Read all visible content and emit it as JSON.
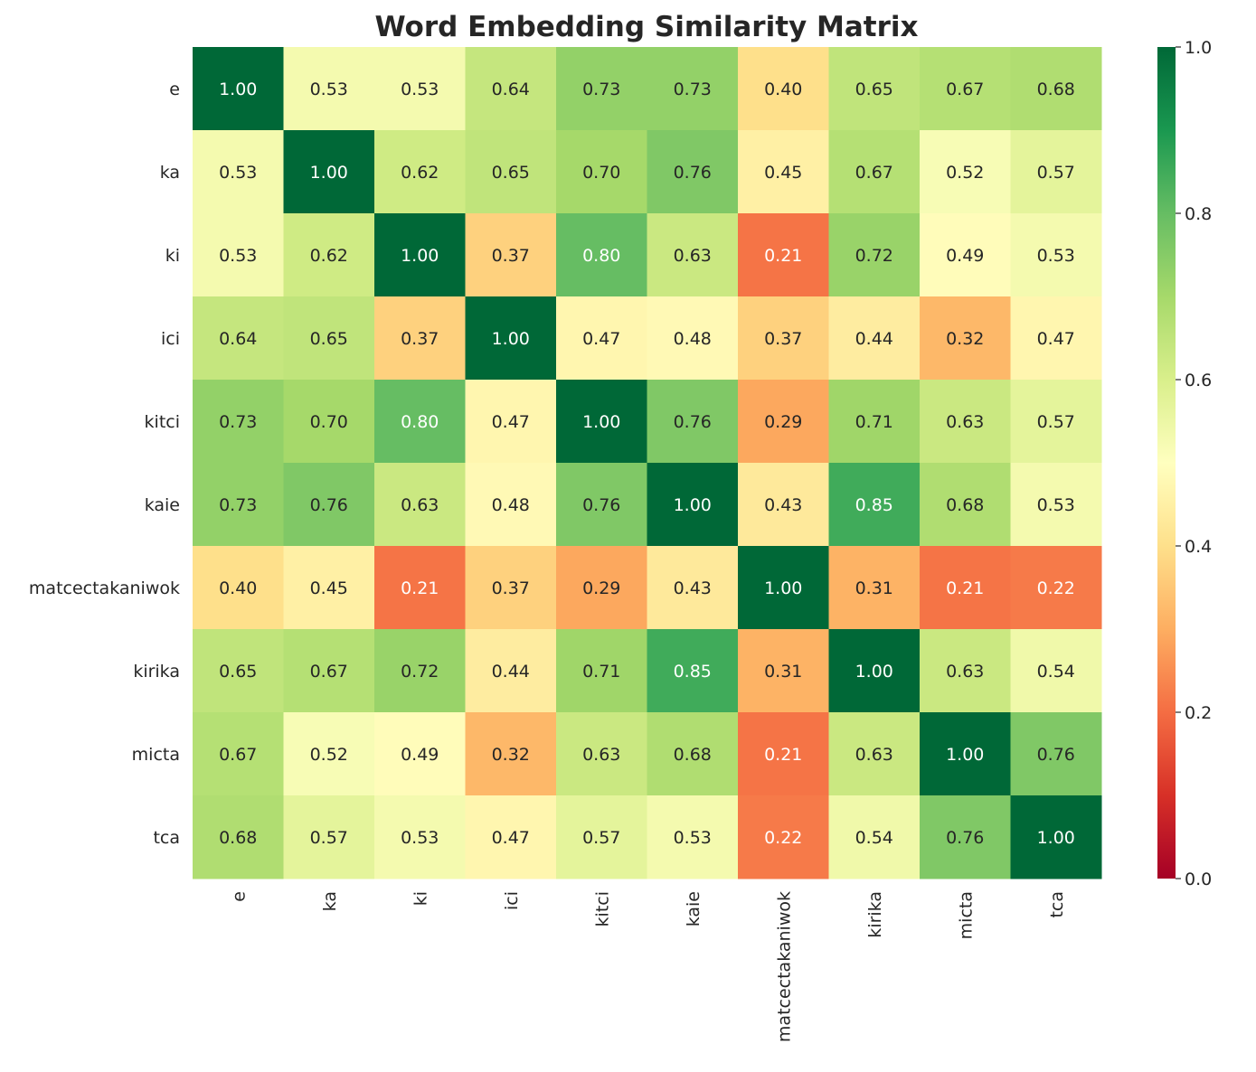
{
  "chart_data": {
    "type": "heatmap",
    "title": "Word Embedding Similarity Matrix",
    "xlabel": "",
    "ylabel": "",
    "row_labels": [
      "e",
      "ka",
      "ki",
      "ici",
      "kitci",
      "kaie",
      "matcectakaniwok",
      "kirika",
      "micta",
      "tca"
    ],
    "col_labels": [
      "e",
      "ka",
      "ki",
      "ici",
      "kitci",
      "kaie",
      "matcectakaniwok",
      "kirika",
      "micta",
      "tca"
    ],
    "values": [
      [
        1.0,
        0.53,
        0.53,
        0.64,
        0.73,
        0.73,
        0.4,
        0.65,
        0.67,
        0.68
      ],
      [
        0.53,
        1.0,
        0.62,
        0.65,
        0.7,
        0.76,
        0.45,
        0.67,
        0.52,
        0.57
      ],
      [
        0.53,
        0.62,
        1.0,
        0.37,
        0.8,
        0.63,
        0.21,
        0.72,
        0.49,
        0.53
      ],
      [
        0.64,
        0.65,
        0.37,
        1.0,
        0.47,
        0.48,
        0.37,
        0.44,
        0.32,
        0.47
      ],
      [
        0.73,
        0.7,
        0.8,
        0.47,
        1.0,
        0.76,
        0.29,
        0.71,
        0.63,
        0.57
      ],
      [
        0.73,
        0.76,
        0.63,
        0.48,
        0.76,
        1.0,
        0.43,
        0.85,
        0.68,
        0.53
      ],
      [
        0.4,
        0.45,
        0.21,
        0.37,
        0.29,
        0.43,
        1.0,
        0.31,
        0.21,
        0.22
      ],
      [
        0.65,
        0.67,
        0.72,
        0.44,
        0.71,
        0.85,
        0.31,
        1.0,
        0.63,
        0.54
      ],
      [
        0.67,
        0.52,
        0.49,
        0.32,
        0.63,
        0.68,
        0.21,
        0.63,
        1.0,
        0.76
      ],
      [
        0.68,
        0.57,
        0.53,
        0.47,
        0.57,
        0.53,
        0.22,
        0.54,
        0.76,
        1.0
      ]
    ],
    "colormap": "RdYlGn",
    "vmin": 0.0,
    "vmax": 1.0,
    "colorbar_ticks": [
      "0.0",
      "0.2",
      "0.4",
      "0.6",
      "0.8",
      "1.0"
    ],
    "annotation_format": "0.00"
  }
}
